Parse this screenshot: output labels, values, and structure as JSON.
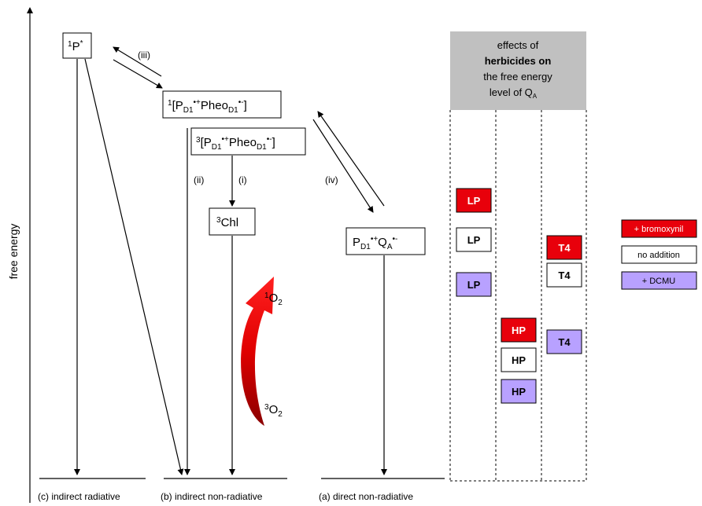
{
  "axis_label": "free energy",
  "species": {
    "singlet_p": [
      "1",
      "P",
      "*"
    ],
    "singlet_pair": [
      "1",
      "[P",
      "D1",
      "•+",
      "Pheo",
      "D1",
      "•-",
      "]"
    ],
    "triplet_pair": [
      "3",
      "[P",
      "D1",
      "•+",
      "Pheo",
      "D1",
      "•-",
      "]"
    ],
    "triplet_chl": [
      "3",
      "Chl"
    ],
    "singlet_o2": [
      "1",
      "O",
      "2"
    ],
    "triplet_o2": [
      "3",
      "O",
      "2"
    ],
    "charge_pair": [
      "P",
      "D1",
      "•+",
      "Q",
      "A",
      "•-"
    ]
  },
  "steps": [
    "(i)",
    "(ii)",
    "(iii)",
    "(iv)"
  ],
  "pathways": [
    "(c) indirect radiative",
    "(b) indirect non-radiative",
    "(a) direct non-radiative"
  ],
  "effects": {
    "header": [
      [
        "effects of"
      ],
      [
        "herbicides on"
      ],
      [
        "the free energy"
      ],
      [
        "level of Q",
        "A"
      ]
    ],
    "columns": [
      [
        "LP",
        "LP",
        "LP"
      ],
      [
        "HP",
        "HP",
        "HP"
      ],
      [
        "T4",
        "T4",
        "T4"
      ]
    ]
  },
  "legend": [
    {
      "label": "+ bromoxynil",
      "color": "#e8000b"
    },
    {
      "label": "no addition",
      "color": "#ffffff"
    },
    {
      "label": "+ DCMU",
      "color": "#b8a1ff"
    }
  ]
}
